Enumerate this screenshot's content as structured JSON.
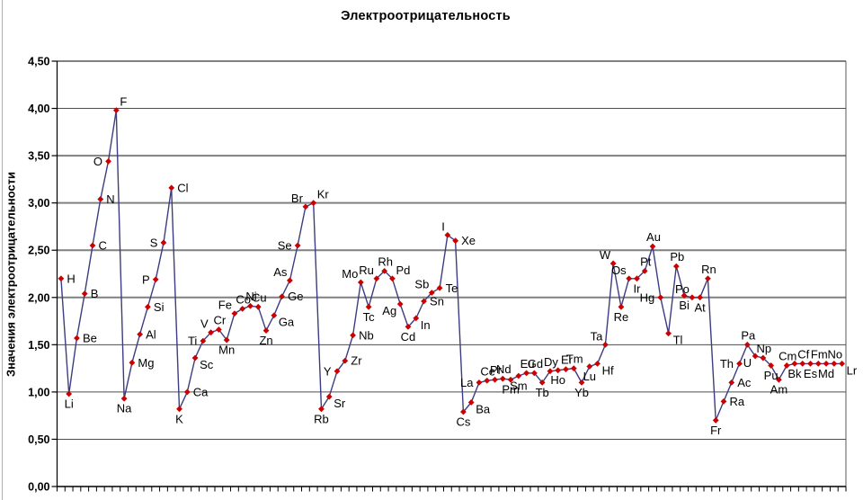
{
  "title": "Электроотрицательность",
  "y_axis": {
    "title": "Значения электроотрицательности",
    "min": 0,
    "max": 4.5,
    "step": 0.5,
    "tick_labels": [
      "0,00",
      "0,50",
      "1,00",
      "1,50",
      "2,00",
      "2,50",
      "3,00",
      "3,50",
      "4,00",
      "4,50"
    ]
  },
  "x_axis": {
    "tick_count": 100,
    "labels_visible": false
  },
  "colors": {
    "line": "#3C3C82",
    "marker": "#CC0000",
    "grid_thick": "#808080",
    "grid_thin": "#4D4D4D",
    "axis": "#000000",
    "plot_border_right": "#595959",
    "text": "#000000",
    "background": "#FFFFFF"
  },
  "chart_data": {
    "type": "line",
    "title": "Электроотрицательность",
    "xlabel": "",
    "ylabel": "Значения электроотрицательности",
    "ylim": [
      0,
      4.5
    ],
    "grid": true,
    "legend": false,
    "marker": "diamond",
    "series": [
      {
        "name": "Электроотрицательность",
        "points": [
          {
            "symbol": "H",
            "value": 2.2,
            "label_side": "E"
          },
          {
            "symbol": "Li",
            "value": 0.98,
            "label_side": "S"
          },
          {
            "symbol": "Be",
            "value": 1.57,
            "label_side": "E"
          },
          {
            "symbol": "B",
            "value": 2.04,
            "label_side": "E"
          },
          {
            "symbol": "C",
            "value": 2.55,
            "label_side": "E"
          },
          {
            "symbol": "N",
            "value": 3.04,
            "label_side": "E"
          },
          {
            "symbol": "O",
            "value": 3.44,
            "label_side": "W"
          },
          {
            "symbol": "F",
            "value": 3.98,
            "label_side": "NE"
          },
          {
            "symbol": "Na",
            "value": 0.93,
            "label_side": "S"
          },
          {
            "symbol": "Mg",
            "value": 1.31,
            "label_side": "E"
          },
          {
            "symbol": "Al",
            "value": 1.61,
            "label_side": "E"
          },
          {
            "symbol": "Si",
            "value": 1.9,
            "label_side": "E"
          },
          {
            "symbol": "P",
            "value": 2.19,
            "label_side": "W"
          },
          {
            "symbol": "S",
            "value": 2.58,
            "label_side": "W"
          },
          {
            "symbol": "Cl",
            "value": 3.16,
            "label_side": "E"
          },
          {
            "symbol": "K",
            "value": 0.82,
            "label_side": "S"
          },
          {
            "symbol": "Ca",
            "value": 1.0,
            "label_side": "E"
          },
          {
            "symbol": "Sc",
            "value": 1.36,
            "label_side": "SE"
          },
          {
            "symbol": "Ti",
            "value": 1.54,
            "label_side": "W"
          },
          {
            "symbol": "V",
            "value": 1.63,
            "label_side": "NW"
          },
          {
            "symbol": "Cr",
            "value": 1.66,
            "label_side": "N"
          },
          {
            "symbol": "Mn",
            "value": 1.55,
            "label_side": "S"
          },
          {
            "symbol": "Fe",
            "value": 1.83,
            "label_side": "NW"
          },
          {
            "symbol": "Co",
            "value": 1.88,
            "label_side": "N"
          },
          {
            "symbol": "Ni",
            "value": 1.91,
            "label_side": "N"
          },
          {
            "symbol": "Cu",
            "value": 1.9,
            "label_side": "N"
          },
          {
            "symbol": "Zn",
            "value": 1.65,
            "label_side": "S"
          },
          {
            "symbol": "Ga",
            "value": 1.81,
            "label_side": "SE"
          },
          {
            "symbol": "Ge",
            "value": 2.01,
            "label_side": "E"
          },
          {
            "symbol": "As",
            "value": 2.18,
            "label_side": "NW"
          },
          {
            "symbol": "Se",
            "value": 2.55,
            "label_side": "W"
          },
          {
            "symbol": "Br",
            "value": 2.96,
            "label_side": "NW"
          },
          {
            "symbol": "Kr",
            "value": 3.0,
            "label_side": "NE"
          },
          {
            "symbol": "Rb",
            "value": 0.82,
            "label_side": "S"
          },
          {
            "symbol": "Sr",
            "value": 0.95,
            "label_side": "SE"
          },
          {
            "symbol": "Y",
            "value": 1.22,
            "label_side": "W"
          },
          {
            "symbol": "Zr",
            "value": 1.33,
            "label_side": "E"
          },
          {
            "symbol": "Nb",
            "value": 1.6,
            "label_side": "E"
          },
          {
            "symbol": "Mo",
            "value": 2.16,
            "label_side": "NW"
          },
          {
            "symbol": "Tc",
            "value": 1.9,
            "label_side": "S"
          },
          {
            "symbol": "Ru",
            "value": 2.2,
            "label_side": "NW"
          },
          {
            "symbol": "Rh",
            "value": 2.28,
            "label_side": "N"
          },
          {
            "symbol": "Pd",
            "value": 2.2,
            "label_side": "NE"
          },
          {
            "symbol": "Ag",
            "value": 1.93,
            "label_side": "SW"
          },
          {
            "symbol": "Cd",
            "value": 1.69,
            "label_side": "S"
          },
          {
            "symbol": "In",
            "value": 1.78,
            "label_side": "SE"
          },
          {
            "symbol": "Sn",
            "value": 1.96,
            "label_side": "E"
          },
          {
            "symbol": "Sb",
            "value": 2.05,
            "label_side": "NW"
          },
          {
            "symbol": "Te",
            "value": 2.1,
            "label_side": "E"
          },
          {
            "symbol": "I",
            "value": 2.66,
            "label_side": "NW"
          },
          {
            "symbol": "Xe",
            "value": 2.6,
            "label_side": "E"
          },
          {
            "symbol": "Cs",
            "value": 0.79,
            "label_side": "S"
          },
          {
            "symbol": "Ba",
            "value": 0.89,
            "label_side": "SE"
          },
          {
            "symbol": "La",
            "value": 1.1,
            "label_side": "W"
          },
          {
            "symbol": "Ce",
            "value": 1.12,
            "label_side": "N"
          },
          {
            "symbol": "Pr",
            "value": 1.13,
            "label_side": "N"
          },
          {
            "symbol": "Nd",
            "value": 1.14,
            "label_side": "N"
          },
          {
            "symbol": "Pm",
            "value": 1.13,
            "label_side": "S"
          },
          {
            "symbol": "Sm",
            "value": 1.17,
            "label_side": "S"
          },
          {
            "symbol": "Eu",
            "value": 1.2,
            "label_side": "N"
          },
          {
            "symbol": "Gd",
            "value": 1.2,
            "label_side": "N"
          },
          {
            "symbol": "Tb",
            "value": 1.1,
            "label_side": "S"
          },
          {
            "symbol": "Dy",
            "value": 1.22,
            "label_side": "N"
          },
          {
            "symbol": "Ho",
            "value": 1.23,
            "label_side": "S"
          },
          {
            "symbol": "Er",
            "value": 1.24,
            "label_side": "N"
          },
          {
            "symbol": "Tm",
            "value": 1.25,
            "label_side": "N"
          },
          {
            "symbol": "Yb",
            "value": 1.1,
            "label_side": "S"
          },
          {
            "symbol": "Lu",
            "value": 1.27,
            "label_side": "S"
          },
          {
            "symbol": "Hf",
            "value": 1.3,
            "label_side": "SE"
          },
          {
            "symbol": "Ta",
            "value": 1.5,
            "label_side": "NW"
          },
          {
            "symbol": "W",
            "value": 2.36,
            "label_side": "NW"
          },
          {
            "symbol": "Re",
            "value": 1.9,
            "label_side": "S"
          },
          {
            "symbol": "Os",
            "value": 2.2,
            "label_side": "NW"
          },
          {
            "symbol": "Ir",
            "value": 2.2,
            "label_side": "S"
          },
          {
            "symbol": "Pt",
            "value": 2.28,
            "label_side": "N"
          },
          {
            "symbol": "Au",
            "value": 2.54,
            "label_side": "N"
          },
          {
            "symbol": "Hg",
            "value": 2.0,
            "label_side": "W"
          },
          {
            "symbol": "Tl",
            "value": 1.62,
            "label_side": "SE"
          },
          {
            "symbol": "Pb",
            "value": 2.33,
            "label_side": "N"
          },
          {
            "symbol": "Bi",
            "value": 2.02,
            "label_side": "S"
          },
          {
            "symbol": "Po",
            "value": 2.0,
            "label_side": "NW"
          },
          {
            "symbol": "At",
            "value": 2.0,
            "label_side": "S"
          },
          {
            "symbol": "Rn",
            "value": 2.2,
            "label_side": "N"
          },
          {
            "symbol": "Fr",
            "value": 0.7,
            "label_side": "S"
          },
          {
            "symbol": "Ra",
            "value": 0.9,
            "label_side": "E"
          },
          {
            "symbol": "Ac",
            "value": 1.1,
            "label_side": "E"
          },
          {
            "symbol": "Th",
            "value": 1.3,
            "label_side": "W"
          },
          {
            "symbol": "Pa",
            "value": 1.5,
            "label_side": "N"
          },
          {
            "symbol": "U",
            "value": 1.38,
            "label_side": "SW"
          },
          {
            "symbol": "Np",
            "value": 1.36,
            "label_side": "N"
          },
          {
            "symbol": "Pu",
            "value": 1.28,
            "label_side": "S"
          },
          {
            "symbol": "Am",
            "value": 1.13,
            "label_side": "S"
          },
          {
            "symbol": "Cm",
            "value": 1.28,
            "label_side": "N"
          },
          {
            "symbol": "Bk",
            "value": 1.3,
            "label_side": "S"
          },
          {
            "symbol": "Cf",
            "value": 1.3,
            "label_side": "N"
          },
          {
            "symbol": "Es",
            "value": 1.3,
            "label_side": "S"
          },
          {
            "symbol": "Fm",
            "value": 1.3,
            "label_side": "N"
          },
          {
            "symbol": "Md",
            "value": 1.3,
            "label_side": "S"
          },
          {
            "symbol": "No",
            "value": 1.3,
            "label_side": "N"
          },
          {
            "symbol": "Lr",
            "value": 1.3,
            "label_side": "SE"
          }
        ]
      }
    ]
  }
}
